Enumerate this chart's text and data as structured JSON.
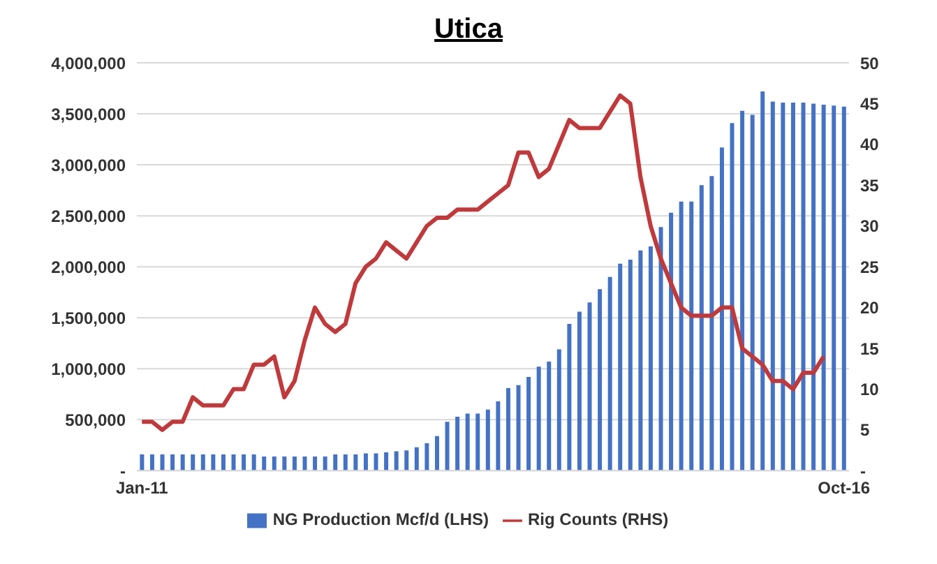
{
  "chart_data": {
    "type": "bar",
    "title": "Utica",
    "categories": [
      "Jan-11",
      null,
      null,
      null,
      null,
      null,
      null,
      null,
      null,
      null,
      null,
      null,
      null,
      null,
      null,
      null,
      null,
      null,
      null,
      null,
      null,
      null,
      null,
      null,
      null,
      null,
      null,
      null,
      null,
      null,
      null,
      null,
      null,
      null,
      null,
      null,
      null,
      null,
      null,
      null,
      null,
      null,
      null,
      null,
      null,
      null,
      null,
      null,
      null,
      null,
      null,
      null,
      null,
      null,
      null,
      null,
      null,
      null,
      null,
      null,
      null,
      null,
      null,
      null,
      null,
      null,
      null,
      null,
      null,
      "Oct-16"
    ],
    "series": [
      {
        "name": "NG Production Mcf/d (LHS)",
        "color": "#4472c4",
        "values": [
          160000,
          160000,
          160000,
          160000,
          160000,
          160000,
          160000,
          160000,
          160000,
          160000,
          160000,
          160000,
          140000,
          140000,
          140000,
          140000,
          140000,
          140000,
          140000,
          160000,
          160000,
          160000,
          170000,
          170000,
          180000,
          190000,
          200000,
          230000,
          270000,
          340000,
          480000,
          530000,
          560000,
          560000,
          600000,
          680000,
          810000,
          840000,
          920000,
          1020000,
          1070000,
          1190000,
          1440000,
          1560000,
          1650000,
          1780000,
          1900000,
          2030000,
          2070000,
          2160000,
          2200000,
          2390000,
          2530000,
          2640000,
          2640000,
          2800000,
          2890000,
          3170000,
          3410000,
          3530000,
          3490000,
          3720000,
          3620000,
          3610000,
          3610000,
          3610000,
          3600000,
          3590000,
          3580000,
          3570000
        ]
      },
      {
        "name": "Rig Counts (RHS)",
        "type": "line",
        "axis": "y2",
        "color": "#c0393b",
        "values": [
          6,
          6,
          5,
          6,
          6,
          9,
          8,
          8,
          8,
          10,
          10,
          13,
          13,
          14,
          9,
          11,
          16,
          20,
          18,
          17,
          18,
          23,
          25,
          26,
          28,
          27,
          26,
          28,
          30,
          31,
          31,
          32,
          32,
          32,
          33,
          34,
          35,
          39,
          39,
          36,
          37,
          40,
          43,
          42,
          42,
          42,
          44,
          46,
          45,
          36,
          30,
          26,
          23,
          20,
          19,
          19,
          19,
          20,
          20,
          15,
          14,
          13,
          11,
          11,
          10,
          12,
          12,
          14,
          null,
          null
        ]
      }
    ],
    "ylim": [
      0,
      4000000
    ],
    "yticks": [
      {
        "value": 0,
        "label": "-"
      },
      {
        "value": 500000,
        "label": "500,000"
      },
      {
        "value": 1000000,
        "label": "1,000,000"
      },
      {
        "value": 1500000,
        "label": "1,500,000"
      },
      {
        "value": 2000000,
        "label": "2,000,000"
      },
      {
        "value": 2500000,
        "label": "2,500,000"
      },
      {
        "value": 3000000,
        "label": "3,000,000"
      },
      {
        "value": 3500000,
        "label": "3,500,000"
      },
      {
        "value": 4000000,
        "label": "4,000,000"
      }
    ],
    "y2lim": [
      0,
      50
    ],
    "y2ticks": [
      {
        "value": 0,
        "label": "-"
      },
      5,
      10,
      15,
      20,
      25,
      30,
      35,
      40,
      45,
      50
    ],
    "grid": "y",
    "legend": "bottom",
    "marker": "none",
    "line_style": "solid"
  }
}
